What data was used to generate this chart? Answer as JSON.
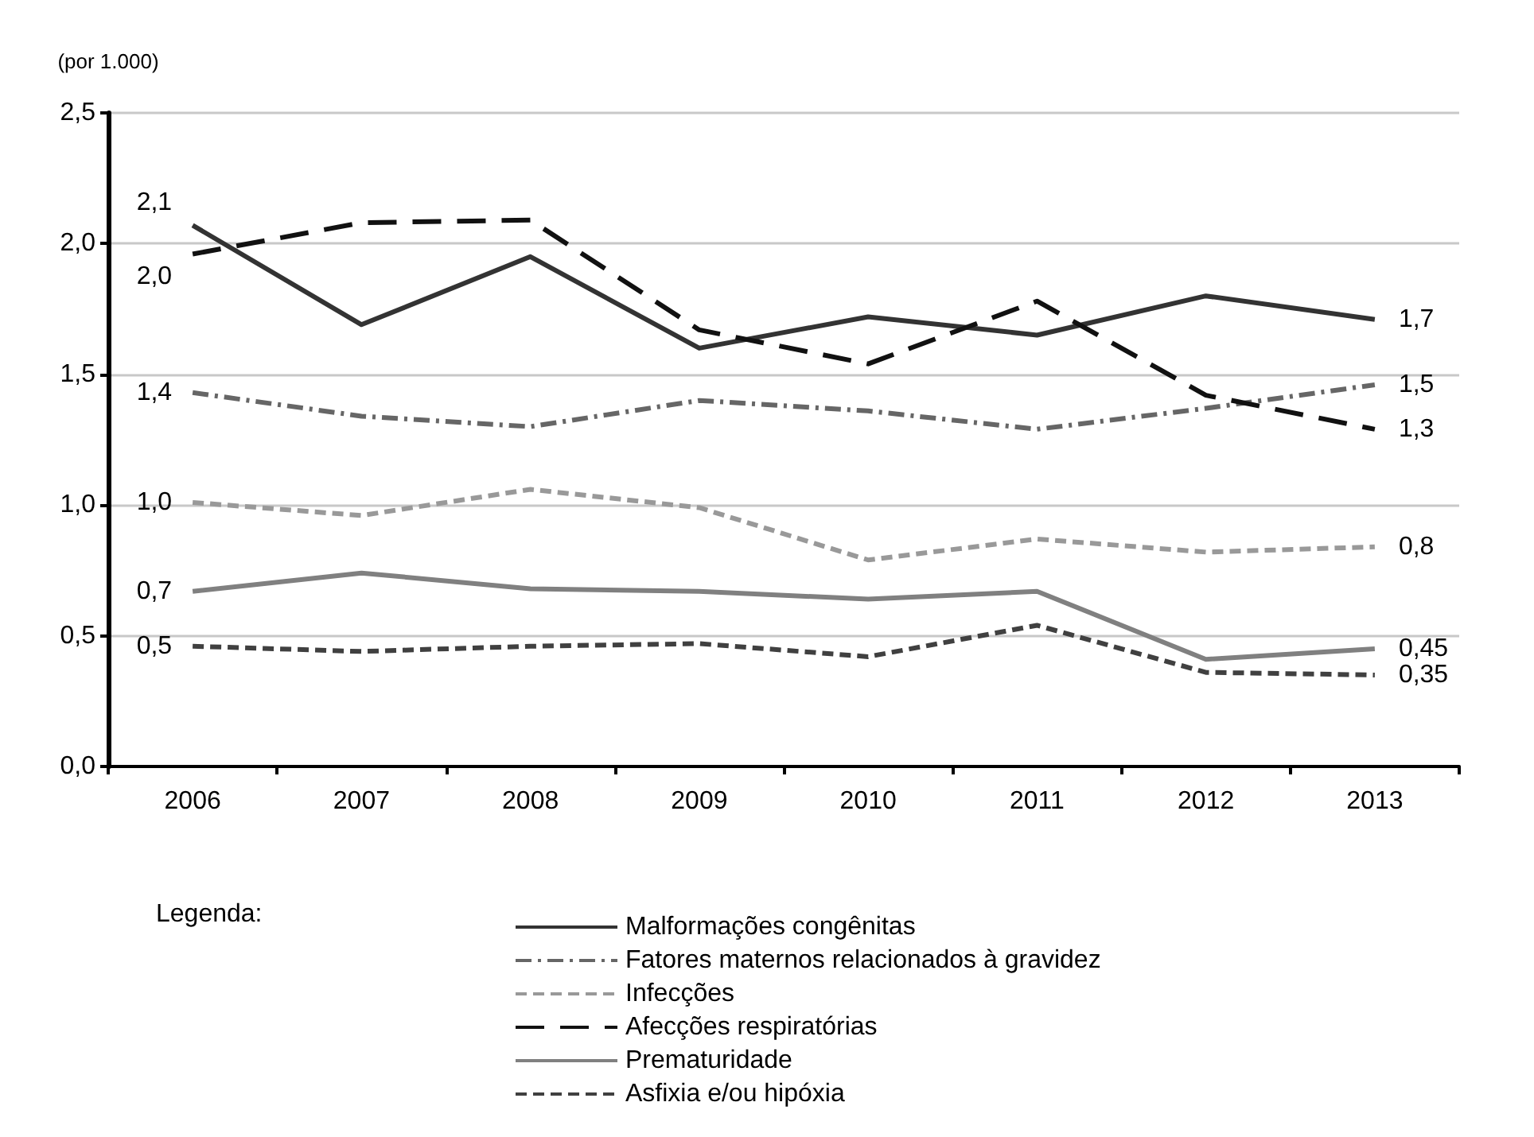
{
  "chart_data": {
    "type": "line",
    "ylabel": "(por 1.000)",
    "legend_title": "Legenda:",
    "categories": [
      "2006",
      "2007",
      "2008",
      "2009",
      "2010",
      "2011",
      "2012",
      "2013"
    ],
    "ylim": [
      0,
      2.5
    ],
    "yticks": [
      {
        "value": 0,
        "label": "0,0"
      },
      {
        "value": 0.5,
        "label": "0,5"
      },
      {
        "value": 1,
        "label": "1,0"
      },
      {
        "value": 1.5,
        "label": "1,5"
      },
      {
        "value": 2,
        "label": "2,0"
      },
      {
        "value": 2.5,
        "label": "2,5"
      }
    ],
    "grid": "y",
    "legend": "bottom",
    "marker": "none",
    "series": [
      {
        "name": "Malformações congênitas",
        "color": "#333333",
        "line_style": "solid",
        "values": [
          2.07,
          1.69,
          1.95,
          1.6,
          1.72,
          1.65,
          1.8,
          1.71
        ],
        "value_labels": [
          "2,1",
          null,
          null,
          null,
          null,
          null,
          null,
          "1,7"
        ]
      },
      {
        "name": "Fatores maternos relacionados à gravidez",
        "color": "#666666",
        "line_style": "dashed",
        "values": [
          1.43,
          1.34,
          1.3,
          1.4,
          1.36,
          1.29,
          1.37,
          1.46
        ],
        "value_labels": [
          "1,4",
          null,
          null,
          null,
          null,
          null,
          null,
          "1,5"
        ]
      },
      {
        "name": "Infecções",
        "color": "#999999",
        "line_style": "dashed",
        "values": [
          1.01,
          0.96,
          1.06,
          0.99,
          0.79,
          0.87,
          0.82,
          0.84
        ],
        "value_labels": [
          "1,0",
          null,
          null,
          null,
          null,
          null,
          null,
          "0,8"
        ]
      },
      {
        "name": "Afecções respiratórias",
        "color": "#111111",
        "line_style": "dashed",
        "values": [
          1.96,
          2.08,
          2.09,
          1.67,
          1.54,
          1.78,
          1.42,
          1.29
        ],
        "value_labels": [
          "2,0",
          null,
          null,
          null,
          null,
          null,
          null,
          "1,3"
        ]
      },
      {
        "name": "Prematuridade",
        "color": "#808080",
        "line_style": "solid",
        "values": [
          0.67,
          0.74,
          0.68,
          0.67,
          0.64,
          0.67,
          0.41,
          0.45
        ],
        "value_labels": [
          "0,7",
          null,
          null,
          null,
          null,
          null,
          null,
          "0,45"
        ]
      },
      {
        "name": "Asfixia e/ou hipóxia",
        "color": "#404040",
        "line_style": "dashed",
        "values": [
          0.46,
          0.44,
          0.46,
          0.47,
          0.42,
          0.54,
          0.36,
          0.35
        ],
        "value_labels": [
          "0,5",
          null,
          null,
          null,
          null,
          null,
          null,
          "0,35"
        ]
      }
    ]
  }
}
